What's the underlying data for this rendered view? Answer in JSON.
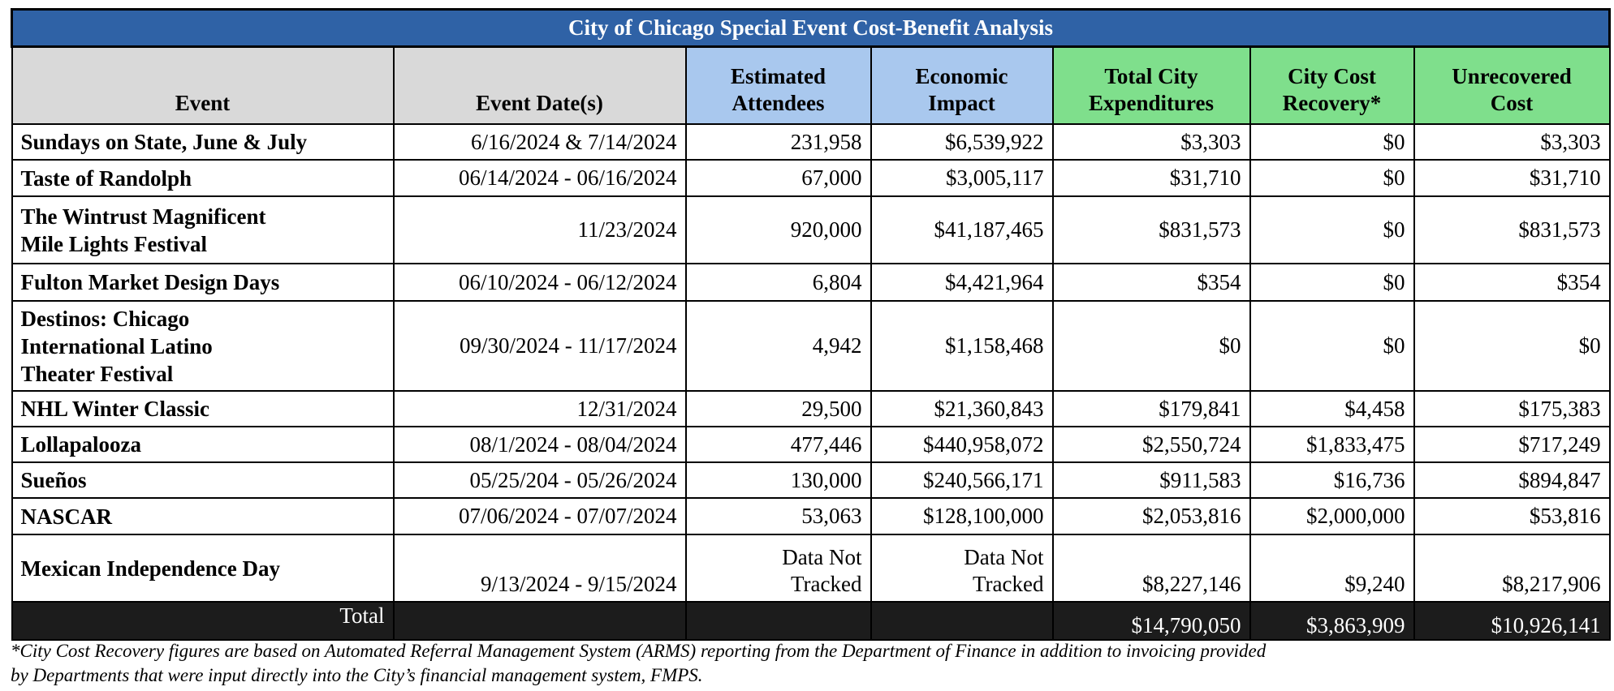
{
  "title": "City of Chicago Special Event Cost-Benefit Analysis",
  "table": {
    "headers": [
      [
        "Event"
      ],
      [
        "Event Date(s)"
      ],
      [
        "Estimated",
        "Attendees"
      ],
      [
        "Economic",
        "Impact"
      ],
      [
        "Total City",
        "Expenditures"
      ],
      [
        "City Cost",
        "Recovery*"
      ],
      [
        "Unrecovered",
        "Cost"
      ]
    ],
    "rows": [
      [
        [
          "Sundays on State, June & July"
        ],
        "6/16/2024 & 7/14/2024",
        [
          "231,958"
        ],
        [
          "$6,539,922"
        ],
        "$3,303",
        "$0",
        "$3,303"
      ],
      [
        [
          "Taste of Randolph"
        ],
        "06/14/2024 - 06/16/2024",
        [
          "67,000"
        ],
        [
          "$3,005,117"
        ],
        "$31,710",
        "$0",
        "$31,710"
      ],
      [
        [
          "The Wintrust Magnificent",
          "Mile Lights Festival"
        ],
        "11/23/2024",
        [
          "920,000"
        ],
        [
          "$41,187,465"
        ],
        "$831,573",
        "$0",
        "$831,573"
      ],
      [
        [
          "Fulton Market Design Days"
        ],
        "06/10/2024 - 06/12/2024",
        [
          "6,804"
        ],
        [
          "$4,421,964"
        ],
        "$354",
        "$0",
        "$354"
      ],
      [
        [
          "Destinos: Chicago",
          "International Latino",
          "Theater Festival"
        ],
        "09/30/2024 - 11/17/2024",
        [
          "4,942"
        ],
        [
          "$1,158,468"
        ],
        "$0",
        "$0",
        "$0"
      ],
      [
        [
          "NHL Winter Classic"
        ],
        "12/31/2024",
        [
          "29,500"
        ],
        [
          "$21,360,843"
        ],
        "$179,841",
        "$4,458",
        "$175,383"
      ],
      [
        [
          "Lollapalooza"
        ],
        "08/1/2024 - 08/04/2024",
        [
          "477,446"
        ],
        [
          "$440,958,072"
        ],
        "$2,550,724",
        "$1,833,475",
        "$717,249"
      ],
      [
        [
          "Sueños"
        ],
        "05/25/204 - 05/26/2024",
        [
          "130,000"
        ],
        [
          "$240,566,171"
        ],
        "$911,583",
        "$16,736",
        "$894,847"
      ],
      [
        [
          "NASCAR"
        ],
        "07/06/2024 - 07/07/2024",
        [
          "53,063"
        ],
        [
          "$128,100,000"
        ],
        "$2,053,816",
        "$2,000,000",
        "$53,816"
      ],
      [
        [
          "Mexican Independence Day"
        ],
        "9/13/2024 - 9/15/2024",
        [
          "Data Not",
          "Tracked"
        ],
        [
          "Data Not",
          "Tracked"
        ],
        "$8,227,146",
        "$9,240",
        "$8,217,906"
      ]
    ],
    "total": {
      "label": "Total",
      "expenditures": "$14,790,050",
      "recovery": "$3,863,909",
      "unrecovered": "$10,926,141"
    }
  },
  "footnote": [
    "*City Cost Recovery figures are based on Automated Referral Management System (ARMS) reporting from the Department of Finance in addition to invoicing provided",
    "by Departments that were input directly into the City’s financial management system, FMPS."
  ]
}
